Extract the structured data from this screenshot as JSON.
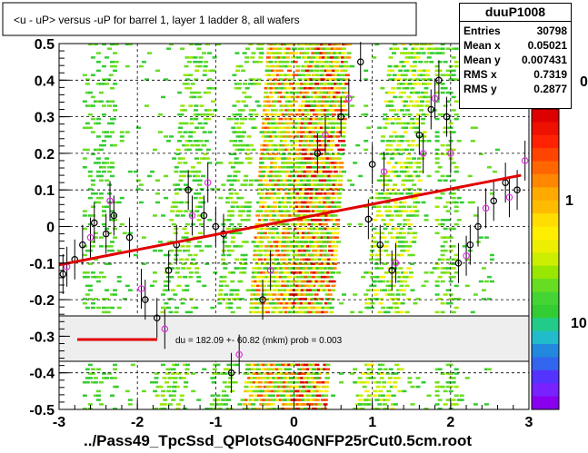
{
  "chart_data": {
    "type": "scatter",
    "title": "<u - uP>       versus  -uP for barrel 1, layer 1 ladder 8, all wafers",
    "xlabel": "../Pass49_TpcSsd_QPlotsG40GNFP25rCut0.5cm.root",
    "ylabel": "",
    "xlim": [
      -3,
      3
    ],
    "ylim": [
      -0.5,
      0.5
    ],
    "x_ticks": [
      "-3",
      "-2",
      "-1",
      "0",
      "1",
      "2",
      "3"
    ],
    "y_ticks": [
      "-0.5",
      "-0.4",
      "-0.3",
      "-0.2",
      "-0.1",
      "0",
      "0.1",
      "0.2",
      "0.3",
      "0.4",
      "0.5"
    ],
    "colorbar_ticks": [
      "1",
      "10"
    ],
    "colorbar_partial_tick": "0",
    "stats": {
      "name": "duuP1008",
      "rows": [
        {
          "label": "Entries",
          "value": "30798"
        },
        {
          "label": "Mean x",
          "value": "0.05021"
        },
        {
          "label": "Mean y",
          "value": "0.007431"
        },
        {
          "label": "RMS x",
          "value": "0.7319"
        },
        {
          "label": "RMS y",
          "value": "0.2877"
        }
      ]
    },
    "fit_line": {
      "x": [
        -3,
        2.9
      ],
      "y": [
        -0.105,
        0.14
      ]
    },
    "legend_text": "du =  182.09 +- 60.82 (mkm) prob = 0.003",
    "profile_black": [
      {
        "x": -2.95,
        "y": -0.13
      },
      {
        "x": -2.8,
        "y": -0.09
      },
      {
        "x": -2.7,
        "y": -0.05
      },
      {
        "x": -2.55,
        "y": 0.01
      },
      {
        "x": -2.4,
        "y": -0.02
      },
      {
        "x": -2.3,
        "y": 0.03
      },
      {
        "x": -2.1,
        "y": -0.03
      },
      {
        "x": -1.9,
        "y": -0.2
      },
      {
        "x": -1.75,
        "y": -0.25
      },
      {
        "x": -1.6,
        "y": -0.12
      },
      {
        "x": -1.5,
        "y": -0.05
      },
      {
        "x": -1.35,
        "y": 0.1
      },
      {
        "x": -1.15,
        "y": 0.03
      },
      {
        "x": -1.0,
        "y": 0.0
      },
      {
        "x": -0.9,
        "y": -0.02
      },
      {
        "x": -0.8,
        "y": -0.4
      },
      {
        "x": -0.4,
        "y": -0.2
      },
      {
        "x": 0.3,
        "y": 0.2
      },
      {
        "x": 0.6,
        "y": 0.3
      },
      {
        "x": 0.85,
        "y": 0.45
      },
      {
        "x": 1.0,
        "y": 0.17
      },
      {
        "x": 0.95,
        "y": 0.02
      },
      {
        "x": 1.1,
        "y": -0.05
      },
      {
        "x": 1.25,
        "y": -0.12
      },
      {
        "x": 1.6,
        "y": 0.25
      },
      {
        "x": 1.75,
        "y": 0.32
      },
      {
        "x": 1.85,
        "y": 0.4
      },
      {
        "x": 1.95,
        "y": 0.3
      },
      {
        "x": 2.1,
        "y": -0.1
      },
      {
        "x": 2.25,
        "y": -0.05
      },
      {
        "x": 2.35,
        "y": 0.0
      },
      {
        "x": 2.55,
        "y": 0.07
      },
      {
        "x": 2.7,
        "y": 0.12
      },
      {
        "x": 2.85,
        "y": 0.1
      }
    ],
    "profile_magenta": [
      {
        "x": -2.9,
        "y": -0.11
      },
      {
        "x": -2.6,
        "y": -0.03
      },
      {
        "x": -2.35,
        "y": 0.07
      },
      {
        "x": -1.95,
        "y": -0.17
      },
      {
        "x": -1.65,
        "y": -0.28
      },
      {
        "x": -1.3,
        "y": 0.03
      },
      {
        "x": -1.1,
        "y": 0.12
      },
      {
        "x": -0.7,
        "y": -0.35
      },
      {
        "x": -0.3,
        "y": -0.12
      },
      {
        "x": 0.4,
        "y": 0.25
      },
      {
        "x": 0.7,
        "y": 0.35
      },
      {
        "x": 1.15,
        "y": 0.15
      },
      {
        "x": 1.3,
        "y": -0.1
      },
      {
        "x": 1.65,
        "y": 0.2
      },
      {
        "x": 1.8,
        "y": 0.35
      },
      {
        "x": 2.0,
        "y": 0.2
      },
      {
        "x": 2.2,
        "y": -0.08
      },
      {
        "x": 2.45,
        "y": 0.05
      },
      {
        "x": 2.75,
        "y": 0.08
      },
      {
        "x": 2.95,
        "y": 0.18
      }
    ]
  }
}
